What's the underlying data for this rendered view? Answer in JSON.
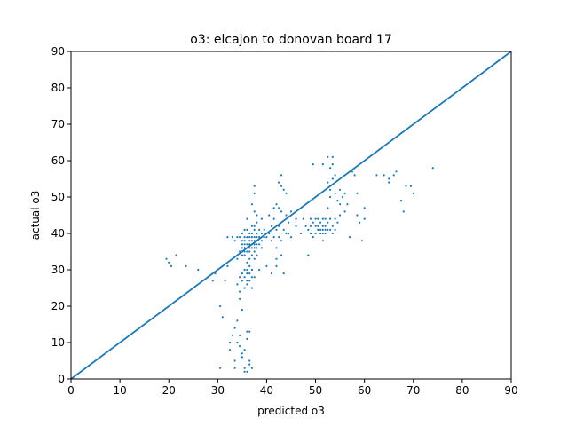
{
  "chart_data": {
    "type": "scatter",
    "title": "o3: elcajon to donovan board 17",
    "xlabel": "predicted o3",
    "ylabel": "actual o3",
    "xlim": [
      0,
      90
    ],
    "ylim": [
      0,
      90
    ],
    "xticks": [
      0,
      10,
      20,
      30,
      40,
      50,
      60,
      70,
      80,
      90
    ],
    "yticks": [
      0,
      10,
      20,
      30,
      40,
      50,
      60,
      70,
      80,
      90
    ],
    "grid": false,
    "colors": {
      "points": "#1f77b4",
      "reference_line": "#1f77b4"
    },
    "reference_line": {
      "x": [
        0,
        90
      ],
      "y": [
        0,
        90
      ]
    },
    "series": [
      {
        "points": [
          [
            19.5,
            33
          ],
          [
            20,
            32
          ],
          [
            20.5,
            31
          ],
          [
            21.5,
            34
          ],
          [
            23.5,
            31
          ],
          [
            26,
            30
          ],
          [
            28,
            28
          ],
          [
            29,
            27
          ],
          [
            29.5,
            29
          ],
          [
            30.5,
            20
          ],
          [
            30.5,
            3
          ],
          [
            31,
            17
          ],
          [
            31.5,
            27
          ],
          [
            32,
            39
          ],
          [
            32,
            31
          ],
          [
            32.5,
            10
          ],
          [
            32.5,
            8
          ],
          [
            33,
            39
          ],
          [
            33,
            12
          ],
          [
            33.5,
            3
          ],
          [
            33.5,
            38
          ],
          [
            33.5,
            14
          ],
          [
            33.5,
            5
          ],
          [
            34,
            39
          ],
          [
            34,
            33
          ],
          [
            34,
            26
          ],
          [
            34,
            10
          ],
          [
            34,
            16
          ],
          [
            34.5,
            39
          ],
          [
            34.5,
            35
          ],
          [
            34.5,
            28
          ],
          [
            34.5,
            24
          ],
          [
            34.5,
            12
          ],
          [
            34.5,
            9
          ],
          [
            34.5,
            22
          ],
          [
            35,
            40
          ],
          [
            35,
            38
          ],
          [
            35,
            37
          ],
          [
            35,
            36
          ],
          [
            35,
            35
          ],
          [
            35,
            34
          ],
          [
            35,
            29
          ],
          [
            35,
            27
          ],
          [
            35,
            19
          ],
          [
            35,
            7
          ],
          [
            35,
            6
          ],
          [
            35.5,
            41
          ],
          [
            35.5,
            39
          ],
          [
            35.5,
            38
          ],
          [
            35.5,
            37
          ],
          [
            35.5,
            36
          ],
          [
            35.5,
            35
          ],
          [
            35.5,
            34
          ],
          [
            35.5,
            30
          ],
          [
            35.5,
            28
          ],
          [
            35.5,
            25
          ],
          [
            35.5,
            8
          ],
          [
            35.5,
            3
          ],
          [
            35.5,
            2
          ],
          [
            36,
            44
          ],
          [
            36,
            41
          ],
          [
            36,
            39
          ],
          [
            36,
            37
          ],
          [
            36,
            35
          ],
          [
            36,
            32
          ],
          [
            36,
            30
          ],
          [
            36,
            29
          ],
          [
            36,
            27
          ],
          [
            36,
            26
          ],
          [
            36,
            13
          ],
          [
            36,
            11
          ],
          [
            36,
            2
          ],
          [
            36.5,
            40
          ],
          [
            36.5,
            39
          ],
          [
            36.5,
            38
          ],
          [
            36.5,
            37
          ],
          [
            36.5,
            36
          ],
          [
            36.5,
            35
          ],
          [
            36.5,
            33
          ],
          [
            36.5,
            31
          ],
          [
            36.5,
            29
          ],
          [
            36.5,
            27
          ],
          [
            36.5,
            13
          ],
          [
            36.5,
            5
          ],
          [
            36.5,
            4
          ],
          [
            37,
            48
          ],
          [
            37,
            42
          ],
          [
            37,
            40
          ],
          [
            37,
            39
          ],
          [
            37,
            38
          ],
          [
            37,
            37
          ],
          [
            37,
            36
          ],
          [
            37,
            34
          ],
          [
            37,
            30
          ],
          [
            37,
            28
          ],
          [
            37,
            25
          ],
          [
            37,
            3
          ],
          [
            37.5,
            53
          ],
          [
            37.5,
            51
          ],
          [
            37.5,
            46
          ],
          [
            37.5,
            42
          ],
          [
            37.5,
            41
          ],
          [
            37.5,
            39
          ],
          [
            37.5,
            38
          ],
          [
            37.5,
            37
          ],
          [
            37.5,
            36
          ],
          [
            37.5,
            35
          ],
          [
            37.5,
            33
          ],
          [
            37.5,
            28
          ],
          [
            38,
            45
          ],
          [
            38,
            43
          ],
          [
            38,
            40
          ],
          [
            38,
            39
          ],
          [
            38,
            38
          ],
          [
            38,
            37
          ],
          [
            38,
            36
          ],
          [
            38,
            34
          ],
          [
            38.5,
            41
          ],
          [
            38.5,
            39
          ],
          [
            38.5,
            37
          ],
          [
            38.5,
            30
          ],
          [
            39,
            44
          ],
          [
            39,
            40
          ],
          [
            39,
            38
          ],
          [
            39,
            36
          ],
          [
            39.5,
            39
          ],
          [
            39.5,
            41
          ],
          [
            40,
            39
          ],
          [
            40,
            31
          ],
          [
            40.5,
            45
          ],
          [
            40.5,
            40
          ],
          [
            41,
            42
          ],
          [
            41,
            38
          ],
          [
            41,
            29
          ],
          [
            41.5,
            47
          ],
          [
            41.5,
            44
          ],
          [
            41.5,
            39
          ],
          [
            42,
            48
          ],
          [
            42,
            41
          ],
          [
            42,
            36
          ],
          [
            42,
            33
          ],
          [
            42,
            31
          ],
          [
            42.5,
            54
          ],
          [
            42.5,
            47
          ],
          [
            42.5,
            42
          ],
          [
            42.5,
            39
          ],
          [
            43,
            56
          ],
          [
            43,
            53
          ],
          [
            43,
            46
          ],
          [
            43,
            38
          ],
          [
            43,
            34
          ],
          [
            43.5,
            52
          ],
          [
            43.5,
            41
          ],
          [
            43.5,
            29
          ],
          [
            44,
            51
          ],
          [
            44,
            45
          ],
          [
            44,
            40
          ],
          [
            44.5,
            43
          ],
          [
            44.5,
            40
          ],
          [
            45,
            46
          ],
          [
            45,
            39
          ],
          [
            46,
            44
          ],
          [
            46,
            42
          ],
          [
            47,
            40
          ],
          [
            47.5,
            44
          ],
          [
            48,
            42
          ],
          [
            48.5,
            41
          ],
          [
            48.5,
            34
          ],
          [
            49,
            44
          ],
          [
            49,
            42
          ],
          [
            49,
            40
          ],
          [
            49.5,
            59
          ],
          [
            49.5,
            43
          ],
          [
            49.5,
            39
          ],
          [
            50,
            44
          ],
          [
            50,
            42
          ],
          [
            50,
            40
          ],
          [
            50.5,
            44
          ],
          [
            50.5,
            42
          ],
          [
            50.5,
            41
          ],
          [
            51,
            43
          ],
          [
            51,
            41
          ],
          [
            51,
            40
          ],
          [
            51.5,
            59
          ],
          [
            51.5,
            44
          ],
          [
            51.5,
            42
          ],
          [
            51.5,
            41
          ],
          [
            51.5,
            40
          ],
          [
            51.5,
            38
          ],
          [
            52,
            44
          ],
          [
            52,
            42
          ],
          [
            52,
            41
          ],
          [
            52,
            40
          ],
          [
            52.5,
            61
          ],
          [
            52.5,
            54
          ],
          [
            52.5,
            47
          ],
          [
            52.5,
            43
          ],
          [
            52.5,
            41
          ],
          [
            53,
            58
          ],
          [
            53,
            52
          ],
          [
            53,
            50
          ],
          [
            53,
            44
          ],
          [
            53,
            41
          ],
          [
            53.5,
            61
          ],
          [
            53.5,
            59
          ],
          [
            53.5,
            55
          ],
          [
            53.5,
            42
          ],
          [
            53.5,
            40
          ],
          [
            54,
            56
          ],
          [
            54,
            51
          ],
          [
            54,
            44
          ],
          [
            54,
            41
          ],
          [
            54.5,
            49
          ],
          [
            54.5,
            43
          ],
          [
            55,
            52
          ],
          [
            55,
            48
          ],
          [
            55,
            45
          ],
          [
            55.5,
            50
          ],
          [
            56,
            51
          ],
          [
            56,
            46
          ],
          [
            56.5,
            48
          ],
          [
            57,
            39
          ],
          [
            57.5,
            57
          ],
          [
            58,
            56
          ],
          [
            58.5,
            51
          ],
          [
            58.5,
            45
          ],
          [
            59,
            43
          ],
          [
            59.5,
            38
          ],
          [
            60,
            47
          ],
          [
            60,
            44
          ],
          [
            62.5,
            56
          ],
          [
            64,
            56
          ],
          [
            65,
            55
          ],
          [
            65,
            54
          ],
          [
            66,
            56
          ],
          [
            66.5,
            57
          ],
          [
            67.5,
            49
          ],
          [
            68,
            46
          ],
          [
            68.5,
            53
          ],
          [
            69.5,
            53
          ],
          [
            70,
            51
          ],
          [
            74,
            58
          ]
        ]
      }
    ]
  }
}
